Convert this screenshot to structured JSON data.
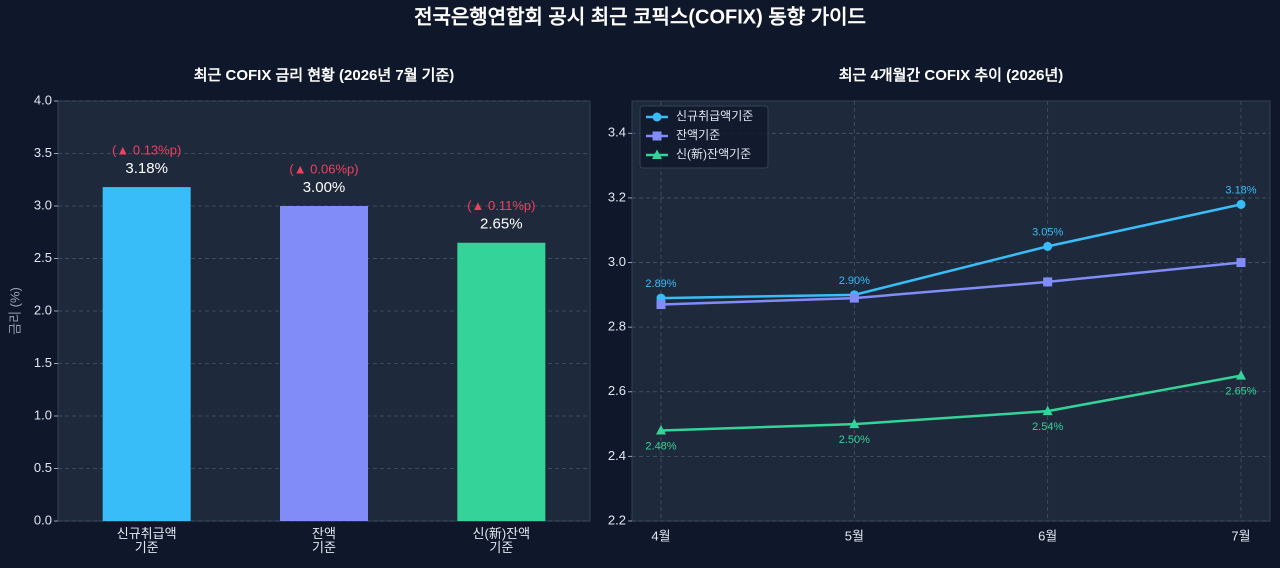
{
  "title": "전국은행연합회 공시 최근 코픽스(COFIX) 동향 가이드",
  "chart_data": [
    {
      "type": "bar",
      "title": "최근 COFIX 금리 현황 (2026년 7월 기준)",
      "y_label": "금리 (%)",
      "categories": [
        "신규취급액\n기준",
        "잔액\n기준",
        "신(新)잔액\n기준"
      ],
      "values": [
        3.18,
        3.0,
        2.65
      ],
      "value_labels": [
        "3.18%",
        "3.00%",
        "2.65%"
      ],
      "annotations": [
        "(▲ 0.13%p)",
        "(▲ 0.06%p)",
        "(▲ 0.11%p)"
      ],
      "colors": [
        "#38bdf8",
        "#818cf8",
        "#34d399"
      ],
      "ylim": [
        0,
        4
      ],
      "yticks": [
        {
          "value": 0,
          "label": "0.0"
        },
        0.5,
        {
          "value": 1,
          "label": "1.0"
        },
        1.5,
        {
          "value": 2,
          "label": "2.0"
        },
        2.5,
        {
          "value": 3,
          "label": "3.0"
        },
        3.5,
        {
          "value": 4,
          "label": "4.0"
        }
      ],
      "grid": true
    },
    {
      "type": "line",
      "title": "최근 4개월간 COFIX 추이 (2026년)",
      "categories": [
        "4월",
        "5월",
        "6월",
        "7월"
      ],
      "series": [
        {
          "name": "신규취급액기준",
          "color": "#38bdf8",
          "marker": "circle",
          "values": [
            2.89,
            2.9,
            3.05,
            3.18
          ],
          "value_labels": [
            "2.89%",
            "2.90%",
            "3.05%",
            "3.18%"
          ],
          "label_position": "above"
        },
        {
          "name": "잔액기준",
          "color": "#818cf8",
          "marker": "square",
          "values": [
            2.87,
            2.89,
            2.94,
            3.0
          ]
        },
        {
          "name": "신(新)잔액기준",
          "color": "#34d399",
          "marker": "triangle",
          "values": [
            2.48,
            2.5,
            2.54,
            2.65
          ],
          "value_labels": [
            "2.48%",
            "2.50%",
            "2.54%",
            "2.65%"
          ],
          "label_position": "below"
        }
      ],
      "ylim": [
        2.2,
        3.5
      ],
      "yticks": [
        2.2,
        2.4,
        2.6,
        2.8,
        {
          "value": 3,
          "label": "3.0"
        },
        3.2,
        3.4
      ],
      "grid": true,
      "legend": "upper-left"
    }
  ]
}
